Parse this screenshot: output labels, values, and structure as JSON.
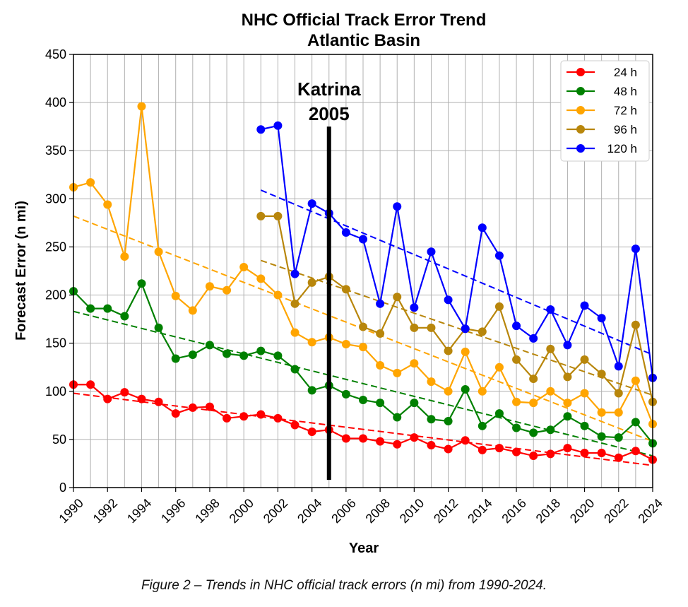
{
  "chart_data": {
    "type": "line",
    "title": "NHC Official Track Error Trend",
    "subtitle": "Atlantic Basin",
    "xlabel": "Year",
    "ylabel": "Forecast Error (n mi)",
    "xlim": [
      1990,
      2024
    ],
    "ylim": [
      0,
      450
    ],
    "x_ticks": [
      "1990",
      "1992",
      "1994",
      "1996",
      "1998",
      "2000",
      "2002",
      "2004",
      "2006",
      "2008",
      "2010",
      "2012",
      "2014",
      "2016",
      "2018",
      "2020",
      "2022",
      "2024"
    ],
    "y_ticks": [
      "0",
      "50",
      "100",
      "150",
      "200",
      "250",
      "300",
      "350",
      "400",
      "450"
    ],
    "grid": true,
    "legend_position": "top-right",
    "series": [
      {
        "name": "24 h",
        "color": "#ff0000",
        "start_year": 1990,
        "values": [
          107,
          107,
          92,
          99,
          92,
          89,
          77,
          83,
          84,
          72,
          74,
          76,
          72,
          65,
          58,
          60,
          51,
          51,
          48,
          45,
          52,
          44,
          40,
          49,
          39,
          41,
          37,
          33,
          35,
          41,
          36,
          36,
          31,
          38,
          29
        ],
        "trend": [
          98,
          23
        ]
      },
      {
        "name": "48 h",
        "color": "#008000",
        "start_year": 1990,
        "values": [
          204,
          186,
          186,
          178,
          212,
          166,
          134,
          138,
          148,
          139,
          137,
          142,
          137,
          123,
          101,
          106,
          97,
          91,
          88,
          73,
          88,
          71,
          69,
          102,
          64,
          77,
          62,
          57,
          60,
          74,
          64,
          53,
          52,
          68,
          46
        ],
        "trend": [
          183,
          33
        ]
      },
      {
        "name": "72 h",
        "color": "#ffa500",
        "start_year": 1990,
        "values": [
          312,
          317,
          294,
          240,
          396,
          245,
          199,
          184,
          209,
          205,
          229,
          217,
          200,
          161,
          151,
          156,
          149,
          146,
          127,
          119,
          129,
          110,
          100,
          141,
          100,
          125,
          89,
          88,
          100,
          88,
          98,
          78,
          78,
          111,
          66
        ],
        "trend": [
          282,
          48
        ]
      },
      {
        "name": "96 h",
        "color": "#b8860b",
        "start_year": 2001,
        "values": [
          282,
          282,
          191,
          213,
          219,
          206,
          167,
          160,
          198,
          166,
          166,
          142,
          165,
          162,
          188,
          133,
          113,
          144,
          115,
          133,
          118,
          98,
          169,
          89
        ],
        "trend": [
          236,
          96
        ]
      },
      {
        "name": "120 h",
        "color": "#0000ff",
        "start_year": 2001,
        "values": [
          372,
          376,
          222,
          295,
          285,
          265,
          258,
          191,
          292,
          187,
          245,
          195,
          165,
          270,
          241,
          168,
          155,
          185,
          148,
          189,
          176,
          126,
          248,
          114
        ],
        "trend": [
          309,
          138
        ]
      }
    ],
    "annotation": {
      "line1": "Katrina",
      "line2": "2005",
      "year": 2005,
      "y_from": 8,
      "y_to": 375
    }
  },
  "caption": "Figure 2 – Trends in NHC official track errors (n mi) from 1990-2024."
}
